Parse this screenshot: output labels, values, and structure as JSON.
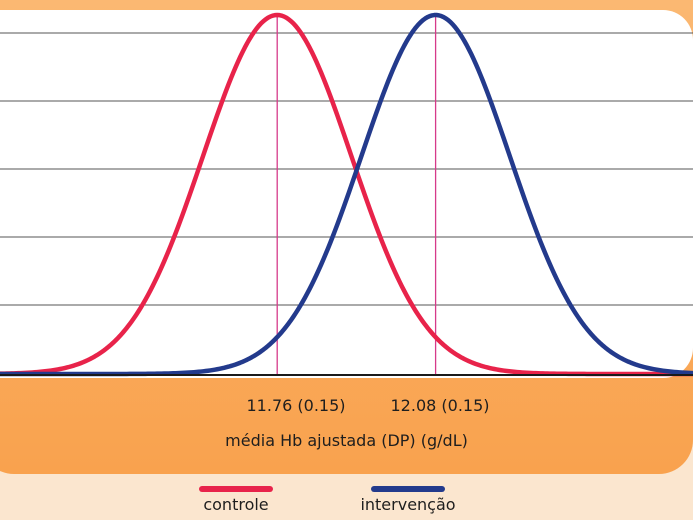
{
  "chart_data": {
    "type": "line",
    "xlabel": "média Hb ajustada (DP) (g/dL)",
    "x_range": [
      11.2,
      12.6
    ],
    "ylim": [
      0,
      1
    ],
    "grid": "horizontal",
    "legend_position": "bottom",
    "series": [
      {
        "name": "controle",
        "color": "#e8234a",
        "mean": 11.76,
        "sd": 0.15
      },
      {
        "name": "intervenção",
        "color": "#233a8c",
        "mean": 12.08,
        "sd": 0.15
      }
    ],
    "tick_labels": [
      "11.76 (0.15)",
      "12.08 (0.15)"
    ],
    "marker_color": "#d63a8a"
  },
  "colors": {
    "panel": "#f9a24e",
    "background": "#fbe6cf",
    "grid": "#555555",
    "axis": "#1a1a1a"
  }
}
